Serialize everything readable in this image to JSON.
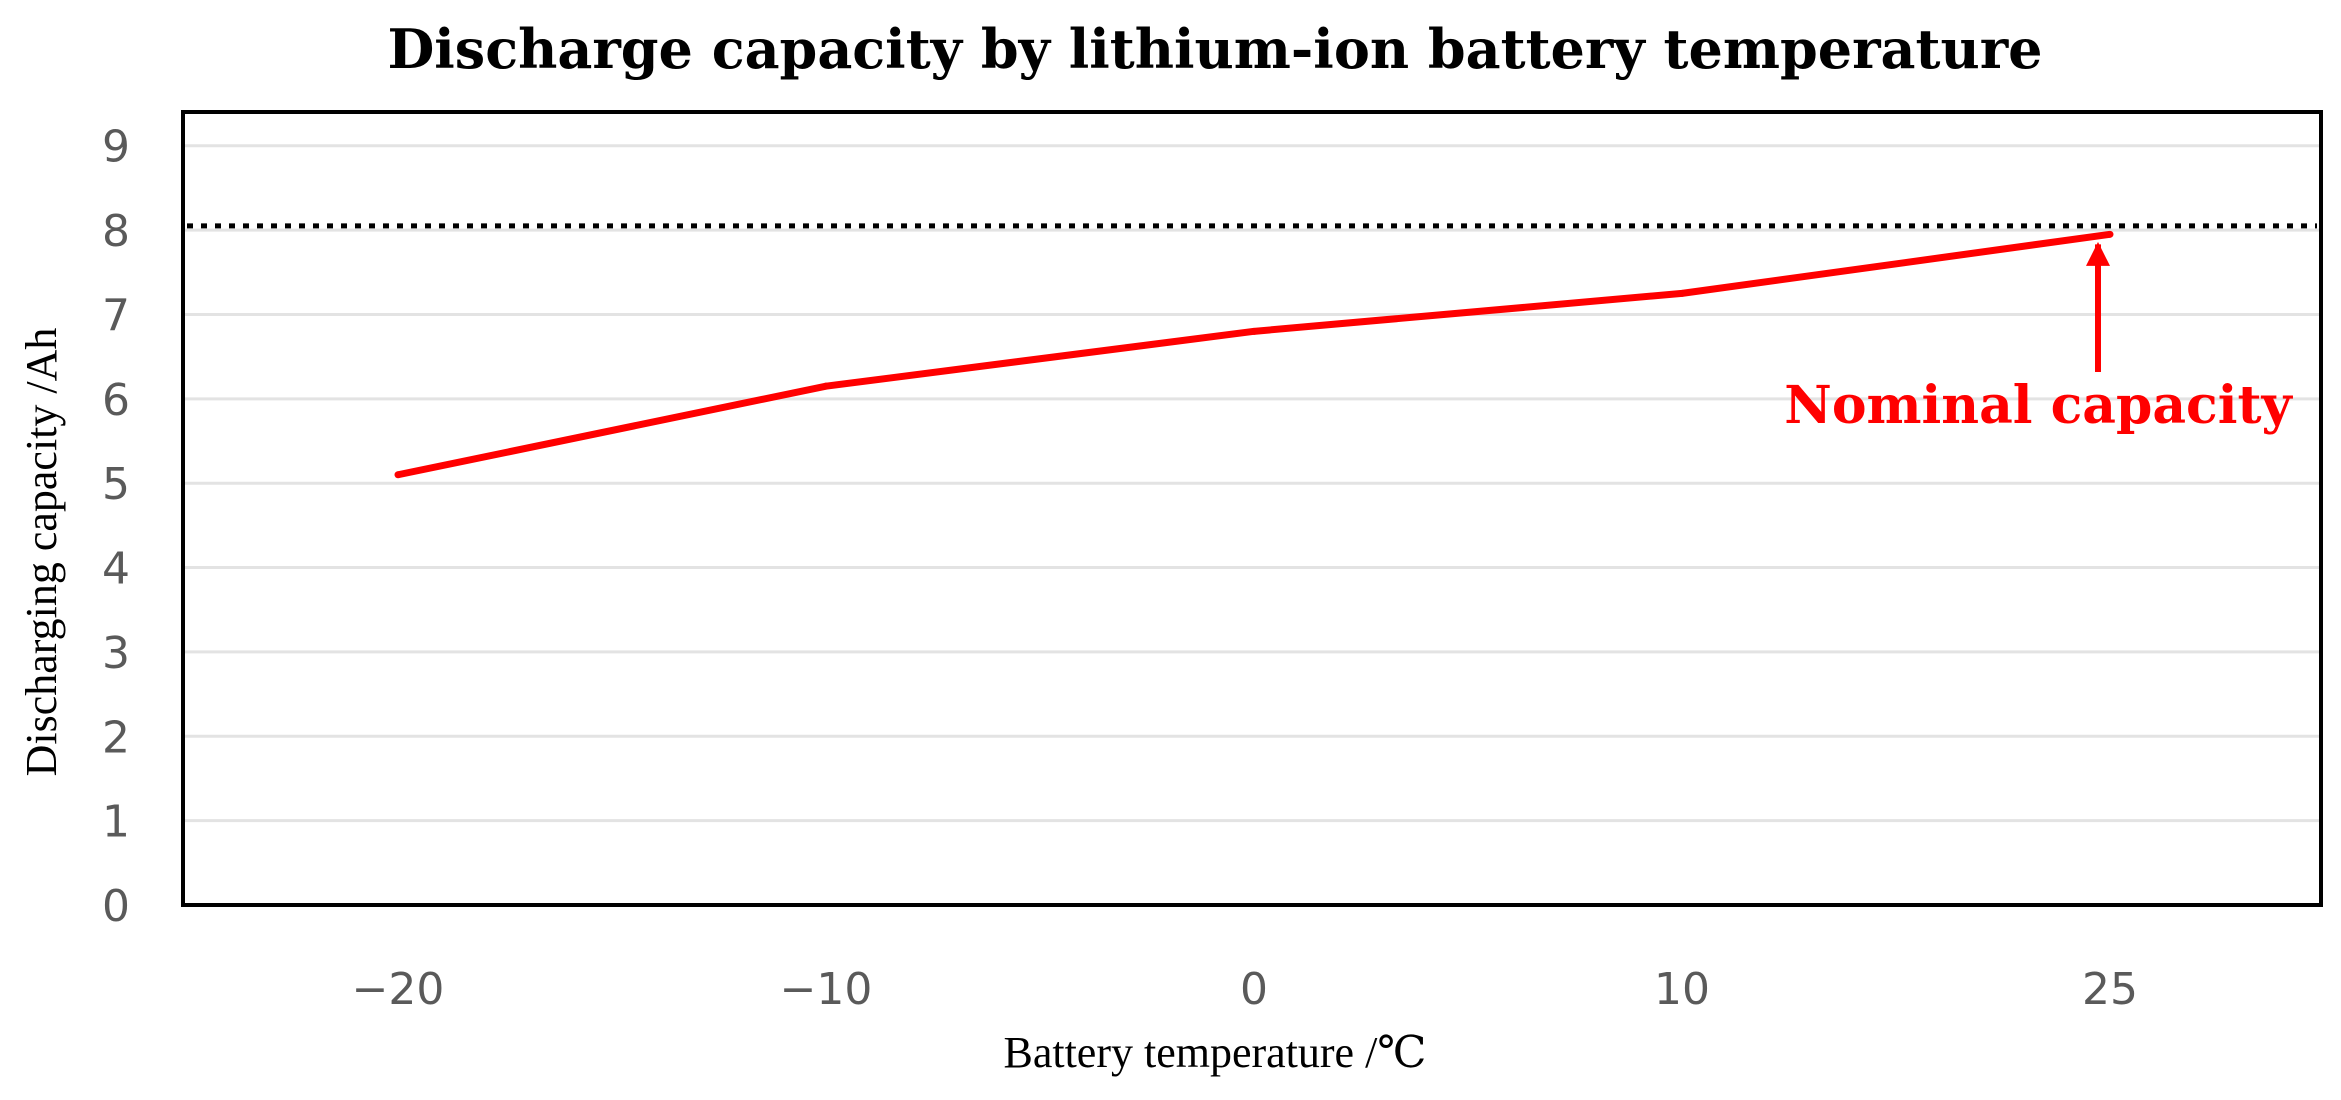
{
  "chart_data": {
    "type": "line",
    "title": "Discharge capacity by lithium-ion battery temperature",
    "xlabel": "Battery temperature /℃",
    "ylabel": "Discharging capacity /Ah",
    "x_ticks": [
      "−20",
      "−10",
      "0",
      "10",
      "25"
    ],
    "y_ticks": [
      "0",
      "1",
      "2",
      "3",
      "4",
      "5",
      "6",
      "7",
      "8",
      "9"
    ],
    "ylim": [
      0,
      9.4
    ],
    "grid": true,
    "series": [
      {
        "name": "Discharge capacity",
        "color": "#ff0000",
        "x": [
          "−20",
          "−10",
          "0",
          "10",
          "25"
        ],
        "values": [
          5.1,
          6.15,
          6.8,
          7.25,
          7.95
        ]
      }
    ],
    "reference_line": {
      "value": 8.05,
      "style": "dotted",
      "color": "#000000"
    },
    "annotation": {
      "text": "Nominal capacity",
      "color": "#ff0000",
      "points_to_x": "25"
    }
  }
}
